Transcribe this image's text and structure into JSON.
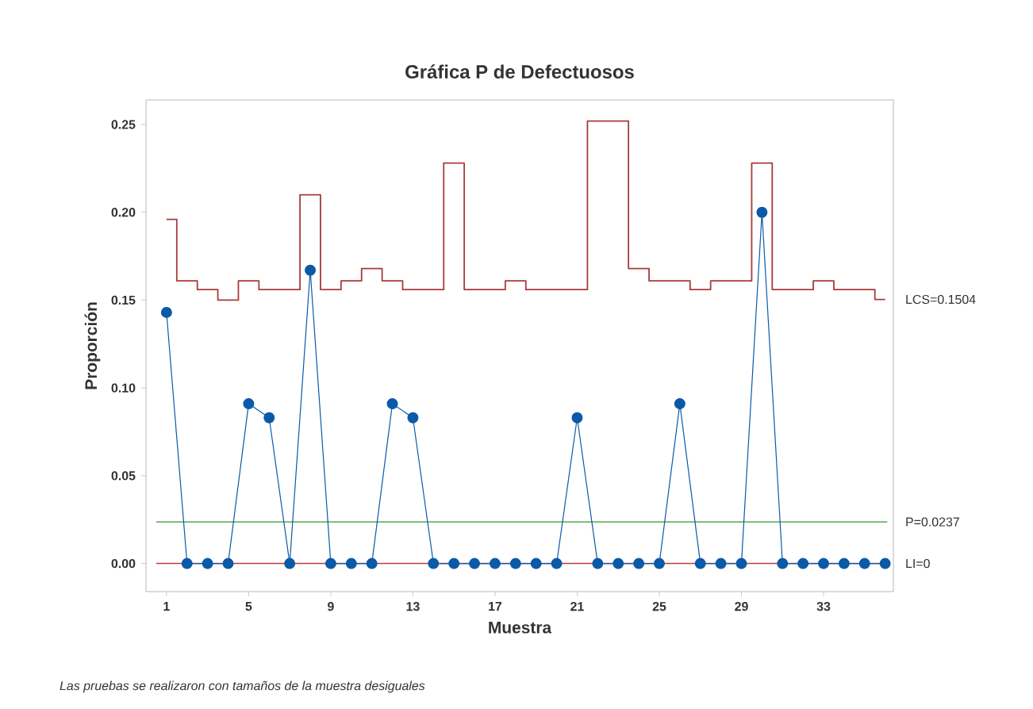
{
  "chart_data": {
    "type": "line",
    "title": "Gráfica P de Defectuosos",
    "xlabel": "Muestra",
    "ylabel": "Proporción",
    "annotations": [
      "Las pruebas se realizaron con tamaños de la muestra desiguales"
    ],
    "x": [
      1,
      2,
      3,
      4,
      5,
      6,
      7,
      8,
      9,
      10,
      11,
      12,
      13,
      14,
      15,
      16,
      17,
      18,
      19,
      20,
      21,
      22,
      23,
      24,
      25,
      26,
      27,
      28,
      29,
      30,
      31,
      32,
      33,
      34,
      35,
      36
    ],
    "series": [
      {
        "type": "step",
        "name": "LCS=0.1504",
        "color": "#a93a3a",
        "marker": "none",
        "values": [
          0.196,
          0.161,
          0.156,
          0.15,
          0.161,
          0.156,
          0.156,
          0.21,
          0.156,
          0.161,
          0.168,
          0.161,
          0.156,
          0.156,
          0.228,
          0.156,
          0.156,
          0.161,
          0.156,
          0.156,
          0.156,
          0.252,
          0.252,
          0.168,
          0.161,
          0.161,
          0.156,
          0.161,
          0.161,
          0.228,
          0.156,
          0.156,
          0.161,
          0.156,
          0.156,
          0.1504
        ]
      },
      {
        "color": "#0b5aa8",
        "marker": "circle",
        "values": [
          0.143,
          0,
          0,
          0,
          0.091,
          0.083,
          0,
          0.167,
          0,
          0,
          0,
          0.091,
          0.083,
          0,
          0,
          0,
          0,
          0,
          0,
          0,
          0.083,
          0,
          0,
          0,
          0,
          0.091,
          0,
          0,
          0,
          0.2,
          0,
          0,
          0,
          0,
          0,
          0
        ]
      }
    ],
    "ref_lines": [
      {
        "axis": "y",
        "value": 0.0237,
        "label": "P=0.0237",
        "color": "#6ab56a"
      },
      {
        "axis": "y",
        "value": 0,
        "label": "LI=0",
        "color": "#c03a3a"
      }
    ],
    "xlim": [
      0,
      36.4
    ],
    "ylim": [
      -0.016,
      0.264
    ],
    "xticks": [
      1,
      5,
      9,
      13,
      17,
      21,
      25,
      29,
      33
    ],
    "yticks": [
      {
        "value": 0,
        "label": "0.00"
      },
      {
        "value": 0.05,
        "label": "0.05"
      },
      {
        "value": 0.1,
        "label": "0.10"
      },
      {
        "value": 0.15,
        "label": "0.15"
      },
      {
        "value": 0.2,
        "label": "0.20"
      },
      {
        "value": 0.25,
        "label": "0.25"
      }
    ],
    "line_style": "solid"
  }
}
